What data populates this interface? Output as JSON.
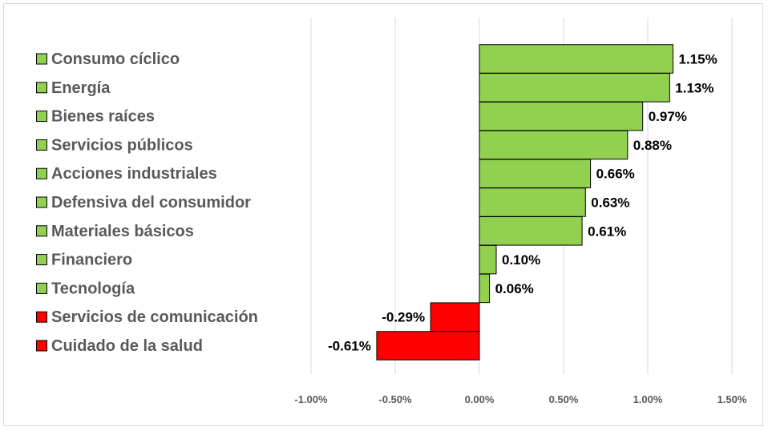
{
  "chart_data": {
    "type": "bar",
    "orientation": "horizontal",
    "categories": [
      "Consumo cíclico",
      "Energía",
      "Bienes raíces",
      "Servicios públicos",
      "Acciones industriales",
      "Defensiva del consumidor",
      "Materiales básicos",
      "Financiero",
      "Tecnología",
      "Servicios de comunicación",
      "Cuidado de la salud"
    ],
    "values": [
      1.15,
      1.13,
      0.97,
      0.88,
      0.66,
      0.63,
      0.61,
      0.1,
      0.06,
      -0.29,
      -0.61
    ],
    "value_labels": [
      "1.15%",
      "1.13%",
      "0.97%",
      "0.88%",
      "0.66%",
      "0.63%",
      "0.61%",
      "0.10%",
      "0.06%",
      "-0.29%",
      "-0.61%"
    ],
    "xlim": [
      -1.0,
      1.5
    ],
    "ticks": [
      -1.0,
      -0.5,
      0.0,
      0.5,
      1.0,
      1.5
    ],
    "tick_labels": [
      "-1.00%",
      "-0.50%",
      "0.00%",
      "0.50%",
      "1.00%",
      "1.50%"
    ],
    "grid": "vertical",
    "legend_placement": "left",
    "colors": {
      "positive": "#92d050",
      "negative": "#ff0000",
      "border": "#000000",
      "grid": "#d9d9d9",
      "legend_text": "#595959"
    },
    "title": "",
    "xlabel": "",
    "ylabel": ""
  }
}
